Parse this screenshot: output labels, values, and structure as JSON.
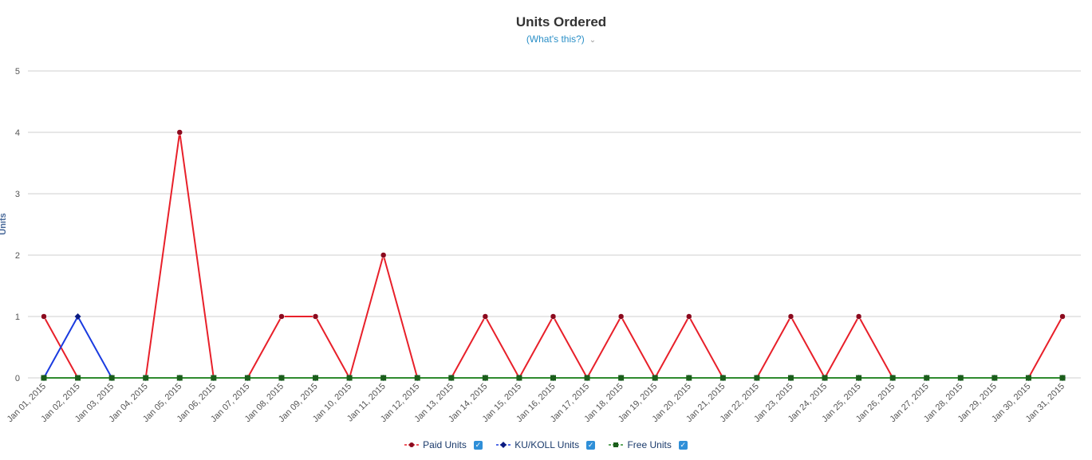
{
  "chart_data": {
    "type": "line",
    "title": "Units Ordered",
    "subtitle": "(What's this?)",
    "xlabel": "",
    "ylabel": "Units",
    "ylim": [
      0,
      5
    ],
    "yticks": [
      "0",
      "1",
      "2",
      "3",
      "4",
      "5"
    ],
    "grid": true,
    "legend_position": "bottom",
    "categories": [
      "Jan 01, 2015",
      "Jan 02, 2015",
      "Jan 03, 2015",
      "Jan 04, 2015",
      "Jan 05, 2015",
      "Jan 06, 2015",
      "Jan 07, 2015",
      "Jan 08, 2015",
      "Jan 09, 2015",
      "Jan 10, 2015",
      "Jan 11, 2015",
      "Jan 12, 2015",
      "Jan 13, 2015",
      "Jan 14, 2015",
      "Jan 15, 2015",
      "Jan 16, 2015",
      "Jan 17, 2015",
      "Jan 18, 2015",
      "Jan 19, 2015",
      "Jan 20, 2015",
      "Jan 21, 2015",
      "Jan 22, 2015",
      "Jan 23, 2015",
      "Jan 24, 2015",
      "Jan 25, 2015",
      "Jan 26, 2015",
      "Jan 27, 2015",
      "Jan 28, 2015",
      "Jan 29, 2015",
      "Jan 30, 2015",
      "Jan 31, 2015"
    ],
    "series": [
      {
        "name": "Paid Units",
        "color": "#e8202a",
        "marker_color": "#8b0a1e",
        "marker": "circle",
        "values": [
          1,
          0,
          0,
          0,
          4,
          0,
          0,
          1,
          1,
          0,
          2,
          0,
          0,
          1,
          0,
          1,
          0,
          1,
          0,
          1,
          0,
          0,
          1,
          0,
          1,
          0,
          0,
          0,
          0,
          0,
          1
        ]
      },
      {
        "name": "KU/KOLL Units",
        "color": "#1a3be0",
        "marker_color": "#0a1a80",
        "marker": "diamond",
        "values": [
          0,
          1,
          0,
          0,
          0,
          0,
          0,
          0,
          0,
          0,
          0,
          0,
          0,
          0,
          0,
          0,
          0,
          0,
          0,
          0,
          0,
          0,
          0,
          0,
          0,
          0,
          0,
          0,
          0,
          0,
          0
        ]
      },
      {
        "name": "Free Units",
        "color": "#2e8b2e",
        "marker_color": "#1b5e1b",
        "marker": "square",
        "values": [
          0,
          0,
          0,
          0,
          0,
          0,
          0,
          0,
          0,
          0,
          0,
          0,
          0,
          0,
          0,
          0,
          0,
          0,
          0,
          0,
          0,
          0,
          0,
          0,
          0,
          0,
          0,
          0,
          0,
          0,
          0
        ]
      }
    ]
  },
  "legend": {
    "items": [
      {
        "label": "Paid Units",
        "checked": true
      },
      {
        "label": "KU/KOLL Units",
        "checked": true
      },
      {
        "label": "Free Units",
        "checked": true
      }
    ]
  },
  "icons": {
    "chevron": "chevron-down-icon",
    "check": "checkbox-checked-icon"
  }
}
